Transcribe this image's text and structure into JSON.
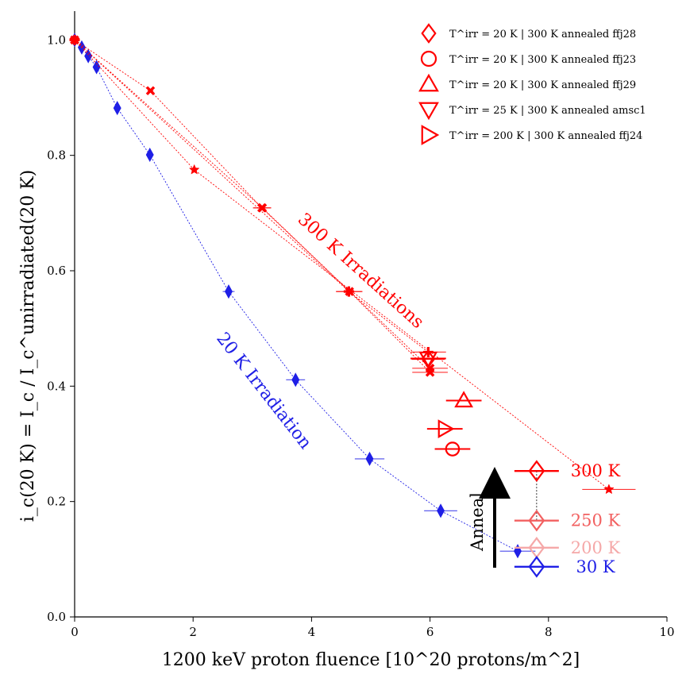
{
  "chart_data": {
    "type": "scatter",
    "xlabel": "1200 keV proton fluence [10^20 protons/m^2]",
    "ylabel": "i_c(20 K) = I_c / I_c^unirradiated(20 K)",
    "xlim": [
      0,
      10
    ],
    "ylim": [
      0,
      1.05
    ],
    "xticks": [
      0,
      2,
      4,
      6,
      8,
      10
    ],
    "yticks": [
      0.0,
      0.2,
      0.4,
      0.6,
      0.8,
      1.0
    ],
    "xtick_labels": [
      "0",
      "2",
      "4",
      "6",
      "8",
      "10"
    ],
    "ytick_labels": [
      "0.0",
      "0.2",
      "0.4",
      "0.6",
      "0.8",
      "1.0"
    ],
    "grid": false,
    "legend_position": "top-right",
    "legend": [
      {
        "label": "T^irr =  20 K | 300 K annealed ffj28",
        "marker": "diamond",
        "color": "#ff0000"
      },
      {
        "label": "T^irr =  20 K | 300 K annealed ffj23",
        "marker": "circle",
        "color": "#ff0000"
      },
      {
        "label": "T^irr =  20 K | 300 K annealed ffj29",
        "marker": "triangle-up",
        "color": "#ff0000"
      },
      {
        "label": "T^irr =  25 K | 300 K annealed amsc1",
        "marker": "triangle-down",
        "color": "#ff0000"
      },
      {
        "label": "T^irr = 200 K | 300 K annealed ffj24",
        "marker": "triangle-right",
        "color": "#ff0000"
      }
    ],
    "series": [
      {
        "group": "20K-irradiation",
        "color": "#1f1fe6",
        "marker": "thin-diamond",
        "line": "dotted",
        "x": [
          0.0,
          0.12,
          0.23,
          0.37,
          0.72,
          1.27,
          2.6,
          3.73,
          4.98,
          6.18,
          7.48
        ],
        "y": [
          1.0,
          0.987,
          0.972,
          0.953,
          0.882,
          0.801,
          0.564,
          0.411,
          0.274,
          0.184,
          0.114
        ],
        "xerr": [
          0,
          0,
          0,
          0,
          0,
          0,
          0.1,
          0.16,
          0.25,
          0.28,
          0.3
        ]
      },
      {
        "group": "300K-irradiation",
        "color": "#ff0000",
        "marker": "x-filled",
        "line": "dotted",
        "x": [
          0.0,
          1.28,
          3.16,
          4.64,
          6.0
        ],
        "y": [
          1.0,
          0.912,
          0.709,
          0.564,
          0.424
        ],
        "xerr": [
          0,
          0.05,
          0.15,
          0.22,
          0.3
        ]
      },
      {
        "group": "300K-irradiation",
        "color": "#ff0000",
        "marker": "star",
        "line": "dotted",
        "x": [
          0.0,
          2.02,
          9.02
        ],
        "y": [
          1.0,
          0.775,
          0.221
        ],
        "xerr": [
          0,
          0,
          0.45
        ]
      },
      {
        "group": "300K-irradiation",
        "color": "#ff0000",
        "marker": "plus",
        "line": "dotted",
        "x": [
          0.0,
          4.63,
          5.97
        ],
        "y": [
          1.0,
          0.564,
          0.459
        ],
        "xerr": [
          0,
          0.22,
          0.3
        ]
      },
      {
        "group": "300K-irradiation",
        "color": "#ff0000",
        "marker": "x-filled",
        "line": "dotted",
        "x": [
          0.0,
          3.17,
          6.0
        ],
        "y": [
          1.0,
          0.709,
          0.431
        ],
        "xerr": [
          0,
          0.15,
          0.3
        ]
      }
    ],
    "annealed_points": [
      {
        "legend_index": 0,
        "marker": "diamond",
        "x": 5.97,
        "y": 0.447,
        "xerr": 0.28
      },
      {
        "legend_index": 1,
        "marker": "circle",
        "x": 6.38,
        "y": 0.291,
        "xerr": 0.3
      },
      {
        "legend_index": 2,
        "marker": "triangle-up",
        "x": 6.57,
        "y": 0.375,
        "xerr": 0.3
      },
      {
        "legend_index": 3,
        "marker": "triangle-down",
        "x": 5.97,
        "y": 0.448,
        "xerr": 0.3
      },
      {
        "legend_index": 4,
        "marker": "triangle-right",
        "x": 6.25,
        "y": 0.326,
        "xerr": 0.3
      }
    ],
    "anneal_inset": {
      "x": 7.8,
      "steps": [
        {
          "label": "300 K",
          "y": 0.253,
          "color": "#ff0000"
        },
        {
          "label": "250 K",
          "y": 0.167,
          "color": "#f26060"
        },
        {
          "label": "200 K",
          "y": 0.12,
          "color": "#f5a8a8"
        },
        {
          "label": "30 K",
          "y": 0.087,
          "color": "#1f1fe6"
        }
      ],
      "arrow_label": "Anneal"
    },
    "annotations": [
      {
        "text": "300 K Irradiations",
        "color": "#ff0000"
      },
      {
        "text": "20 K Irradiation",
        "color": "#1f1fe6"
      }
    ]
  }
}
